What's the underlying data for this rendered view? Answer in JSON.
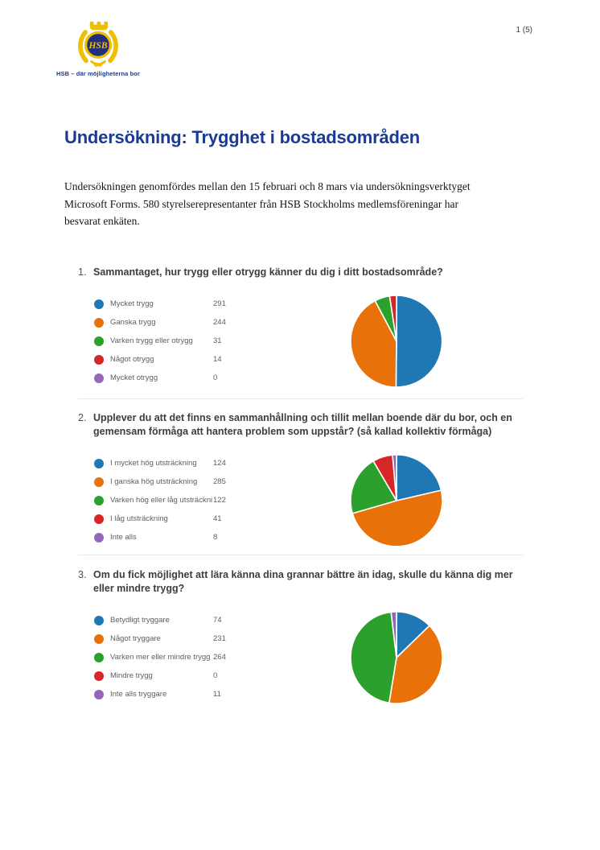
{
  "page": {
    "number_label": "1 (5)"
  },
  "header": {
    "logo_text": "HSB",
    "tagline": "HSB – där möjligheterna bor"
  },
  "document": {
    "title": "Undersökning: Trygghet i bostadsområden",
    "intro_lines": [
      "Undersökningen genomfördes mellan den 15 februari och 8 mars via undersökningsverktyget",
      "Microsoft Forms. 580 styrelserepresentanter från HSB Stockholms medlemsföreningar har",
      "besvarat enkäten."
    ]
  },
  "questions": [
    {
      "number": "1.",
      "lines": [
        "Sammantaget, hur trygg eller otrygg känner du dig i ditt bostadsområde?"
      ]
    },
    {
      "number": "2.",
      "lines": [
        "Upplever du att det finns en sammanhållning och tillit mellan boende där du bor, och en",
        "gemensam förmåga att hantera problem som uppstår? (så kallad kollektiv förmåga)"
      ]
    },
    {
      "number": "3.",
      "lines": [
        "Om du fick möjlighet att lära känna dina grannar bättre än idag, skulle du känna dig mer",
        "eller mindre trygg?"
      ]
    }
  ],
  "chart_data": [
    {
      "type": "pie",
      "title": "Sammantaget, hur trygg eller otrygg känner du dig i ditt bostadsområde?",
      "labels": [
        "Mycket trygg",
        "Ganska trygg",
        "Varken trygg eller otrygg",
        "Något otrygg",
        "Mycket otrygg"
      ],
      "values": [
        291,
        244,
        31,
        14,
        0
      ],
      "colors": [
        "#1f77b4",
        "#e8710a",
        "#2ca02c",
        "#d62728",
        "#9467bd"
      ],
      "total": 580,
      "legend_position": "left",
      "rotation": "clockwise-from-top"
    },
    {
      "type": "pie",
      "title": "Upplever du att det finns en sammanhållning och tillit mellan boende där du bor, och en gemensam förmåga att hantera problem som uppstår? (så kallad kollektiv förmåga)",
      "labels": [
        "I mycket hög utsträckning",
        "I ganska hög utsträckning",
        "Varken hög eller låg utsträckni...",
        "I låg utsträckning",
        "Inte alls"
      ],
      "values": [
        124,
        285,
        122,
        41,
        8
      ],
      "colors": [
        "#1f77b4",
        "#e8710a",
        "#2ca02c",
        "#d62728",
        "#9467bd"
      ],
      "total": 580,
      "legend_position": "left",
      "rotation": "clockwise-from-top"
    },
    {
      "type": "pie",
      "title": "Om du fick möjlighet att lära känna dina grannar bättre än idag, skulle du känna dig mer eller mindre trygg?",
      "labels": [
        "Betydligt tryggare",
        "Något tryggare",
        "Varken mer eller mindre trygg",
        "Mindre trygg",
        "Inte alls tryggare"
      ],
      "values": [
        74,
        231,
        264,
        0,
        11
      ],
      "colors": [
        "#1f77b4",
        "#e8710a",
        "#2ca02c",
        "#d62728",
        "#9467bd"
      ],
      "total": 580,
      "legend_position": "left",
      "rotation": "clockwise-from-top"
    }
  ],
  "colors": {
    "brand_blue": "#1a3a94",
    "logo_gold": "#eebe00",
    "logo_navy": "#232f7a",
    "question_text": "#3d3d3d",
    "legend_text": "#605e5c",
    "divider": "#e9e9e9"
  }
}
